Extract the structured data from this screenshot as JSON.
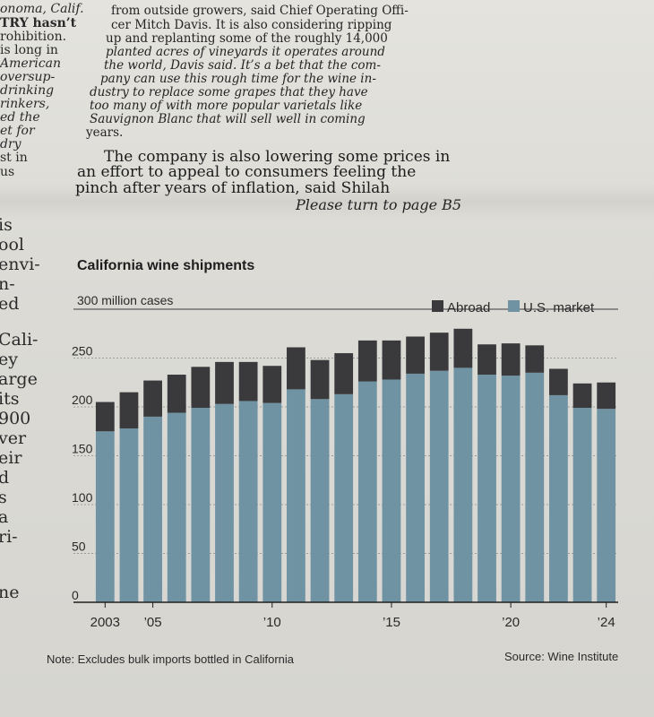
{
  "left_fragments": [
    {
      "text": "onoma, Calif.",
      "style": "italic"
    },
    {
      "text": "TRY hasn’t",
      "style": "bold"
    },
    {
      "text": "rohibition.",
      "style": ""
    },
    {
      "text": "is long in",
      "style": ""
    },
    {
      "text": "American",
      "style": "italic"
    },
    {
      "text": "oversup-",
      "style": "italic"
    },
    {
      "text": "drinking",
      "style": "italic"
    },
    {
      "text": "rinkers,",
      "style": "italic"
    },
    {
      "text": "ed the",
      "style": "italic"
    },
    {
      "text": "et for",
      "style": "italic"
    },
    {
      "text": "dry",
      "style": "italic"
    },
    {
      "text": "st in",
      "style": ""
    },
    {
      "text": "us",
      "style": ""
    },
    {
      "text": "is",
      "style": "big"
    },
    {
      "text": "ool",
      "style": "big"
    },
    {
      "text": "envi-",
      "style": "big"
    },
    {
      "text": "n-",
      "style": "big"
    },
    {
      "text": "ed",
      "style": "big"
    },
    {
      "text": "Cali-",
      "style": "big"
    },
    {
      "text": "ey",
      "style": "big"
    },
    {
      "text": "arge",
      "style": "big"
    },
    {
      "text": "its",
      "style": "big"
    },
    {
      "text": "900",
      "style": "big"
    },
    {
      "text": "ver",
      "style": "big"
    },
    {
      "text": "eir",
      "style": "big"
    },
    {
      "text": "d",
      "style": "big"
    },
    {
      "text": "s",
      "style": "big"
    },
    {
      "text": "a",
      "style": "big"
    },
    {
      "text": "ri-",
      "style": "big"
    },
    {
      "text": "ne",
      "style": "big"
    }
  ],
  "article_lines": [
    "from outside growers, said Chief Operating Offi-",
    "cer Mitch Davis. It is also considering ripping",
    "up and replanting some of the roughly 14,000",
    "planted acres of vineyards it operates around",
    "the world, Davis said. It’s a bet that the com-",
    "pany can use this rough time for the wine in-",
    "dustry to replace some grapes that they have",
    "too many of with more popular varietals like",
    "Sauvignon Blanc that will sell well in coming",
    "years.",
    "The company is also lowering some prices in",
    "an effort to appeal to consumers feeling the",
    "pinch after years of inflation, said Shilah"
  ],
  "turn_page": "Please turn to page B5",
  "chart_data": {
    "type": "bar",
    "title": "California wine shipments",
    "ylabel": "300 million cases",
    "ylim": [
      0,
      300
    ],
    "yticks": [
      0,
      50,
      100,
      150,
      200,
      250
    ],
    "xtick_labels": [
      {
        "year": 2003,
        "label": "2003"
      },
      {
        "year": 2005,
        "label": "’05"
      },
      {
        "year": 2010,
        "label": "’10"
      },
      {
        "year": 2015,
        "label": "’15"
      },
      {
        "year": 2020,
        "label": "’20"
      },
      {
        "year": 2024,
        "label": "’24"
      }
    ],
    "years": [
      2003,
      2004,
      2005,
      2006,
      2007,
      2008,
      2009,
      2010,
      2011,
      2012,
      2013,
      2014,
      2015,
      2016,
      2017,
      2018,
      2019,
      2020,
      2021,
      2022,
      2023,
      2024
    ],
    "series": [
      {
        "name": "U.S. market",
        "color": "#6f93a3",
        "values": [
          175,
          178,
          190,
          194,
          199,
          203,
          206,
          204,
          218,
          208,
          213,
          226,
          228,
          234,
          237,
          240,
          233,
          232,
          235,
          212,
          199,
          198
        ]
      },
      {
        "name": "Abroad",
        "color": "#3a3a3c",
        "values": [
          30,
          37,
          37,
          39,
          42,
          43,
          40,
          38,
          43,
          40,
          42,
          42,
          40,
          38,
          39,
          40,
          31,
          33,
          28,
          27,
          25,
          27
        ]
      }
    ],
    "legend_position": "top-right",
    "grid": true,
    "note": "Note: Excludes bulk imports bottled in California",
    "source": "Source: Wine Institute"
  }
}
